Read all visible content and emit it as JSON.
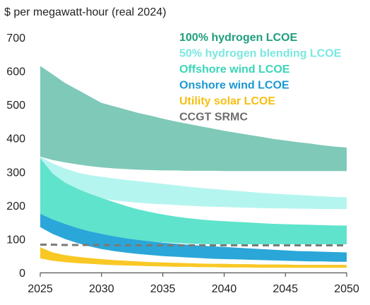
{
  "chart_data": {
    "type": "area",
    "title": "",
    "ylabel": "$ per megawatt-hour (real 2024)",
    "xlabel": "",
    "xlim": [
      2025,
      2050
    ],
    "ylim": [
      0,
      700
    ],
    "x_ticks": [
      "2025",
      "2030",
      "2035",
      "2040",
      "2045",
      "2050"
    ],
    "y_ticks": [
      "0",
      "100",
      "200",
      "300",
      "400",
      "500",
      "600",
      "700"
    ],
    "grid": false,
    "legend_position": "top-right",
    "x": [
      2025,
      2026,
      2027,
      2028,
      2029,
      2030,
      2031,
      2032,
      2033,
      2034,
      2035,
      2036,
      2037,
      2038,
      2039,
      2040,
      2041,
      2042,
      2043,
      2044,
      2045,
      2046,
      2047,
      2048,
      2049,
      2050
    ],
    "series": [
      {
        "name": "100% hydrogen LCOE",
        "color": "#7fc9b8",
        "text_color": "#1f9e7d",
        "style": "band",
        "upper": [
          615,
          590,
          565,
          545,
          525,
          505,
          495,
          485,
          475,
          467,
          458,
          450,
          443,
          436,
          429,
          422,
          416,
          410,
          404,
          398,
          393,
          388,
          384,
          379,
          375,
          372
        ],
        "lower": [
          345,
          335,
          328,
          322,
          317,
          313,
          310,
          308,
          306,
          305,
          304,
          304,
          303,
          303,
          303,
          302,
          302,
          302,
          302,
          302,
          302,
          302,
          302,
          302,
          302,
          302
        ]
      },
      {
        "name": "50% hydrogen blending LCOE",
        "color": "#b5f5ef",
        "text_color": "#7ae8e0",
        "style": "band",
        "upper": [
          345,
          325,
          310,
          298,
          290,
          285,
          280,
          276,
          272,
          268,
          264,
          260,
          256,
          252,
          249,
          246,
          243,
          240,
          237,
          235,
          233,
          231,
          229,
          227,
          225,
          224
        ],
        "lower": [
          300,
          270,
          248,
          235,
          226,
          220,
          215,
          211,
          208,
          205,
          203,
          201,
          199,
          197,
          196,
          195,
          194,
          193,
          192,
          191,
          191,
          190,
          190,
          189,
          189,
          189
        ]
      },
      {
        "name": "Offshore wind LCOE",
        "color": "#5fe3cc",
        "text_color": "#3ad6b8",
        "style": "band",
        "upper": [
          340,
          295,
          268,
          250,
          235,
          222,
          210,
          198,
          188,
          180,
          173,
          167,
          162,
          158,
          155,
          153,
          151,
          149,
          147,
          145,
          144,
          143,
          142,
          141,
          140,
          140
        ],
        "lower": [
          175,
          158,
          145,
          133,
          123,
          115,
          108,
          102,
          97,
          93,
          90,
          88,
          86,
          85,
          84,
          84,
          84,
          84,
          84,
          84,
          84,
          84,
          84,
          84,
          84,
          84
        ]
      },
      {
        "name": "Onshore wind LCOE",
        "color": "#2aa7d8",
        "text_color": "#1a98d2",
        "style": "band",
        "upper": [
          175,
          158,
          145,
          133,
          123,
          115,
          108,
          102,
          97,
          93,
          89,
          86,
          83,
          80,
          78,
          76,
          74,
          72,
          70,
          68,
          66,
          64,
          63,
          62,
          61,
          60
        ],
        "lower": [
          135,
          115,
          100,
          88,
          78,
          70,
          64,
          59,
          55,
          52,
          49,
          47,
          45,
          43,
          41,
          40,
          39,
          38,
          37,
          36,
          35,
          34,
          33,
          33,
          32,
          32
        ]
      },
      {
        "name": "Utility solar LCOE",
        "color": "#f9c825",
        "text_color": "#f5bf12",
        "style": "band",
        "upper": [
          75,
          60,
          52,
          47,
          43,
          40,
          37,
          35,
          33,
          31,
          30,
          29,
          28,
          27,
          26,
          26,
          25,
          25,
          24,
          24,
          24,
          23,
          23,
          23,
          23,
          23
        ],
        "lower": [
          42,
          35,
          31,
          28,
          26,
          24,
          22,
          21,
          20,
          19,
          18,
          17,
          17,
          16,
          16,
          15,
          15,
          15,
          14,
          14,
          14,
          14,
          14,
          14,
          14,
          14
        ]
      },
      {
        "name": "CCGT SRMC",
        "color": "#7a7a7a",
        "text_color": "#6d6d6d",
        "style": "dashed-line",
        "values": [
          83,
          83,
          82,
          82,
          82,
          82,
          81,
          81,
          81,
          81,
          81,
          81,
          81,
          81,
          81,
          81,
          81,
          81,
          81,
          81,
          81,
          81,
          81,
          81,
          81,
          81
        ]
      }
    ]
  }
}
